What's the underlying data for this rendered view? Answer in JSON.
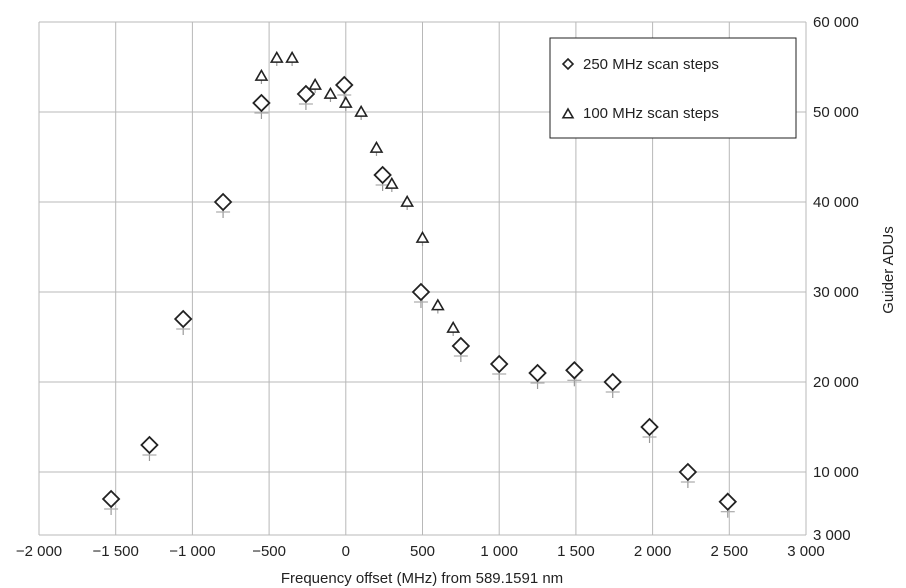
{
  "chart_data": {
    "type": "scatter",
    "xlabel": "Frequency offset (MHz) from 589.1591 nm",
    "ylabel": "Guider ADUs",
    "xlim": [
      -2000,
      3000
    ],
    "ylim": [
      3000,
      60000
    ],
    "x_ticks": [
      -2000,
      -1500,
      -1000,
      -500,
      0,
      500,
      1000,
      1500,
      2000,
      2500,
      3000
    ],
    "x_tick_labels": [
      "−2 000",
      "−1 500",
      "−1 000",
      "−500",
      "0",
      "500",
      "1 000",
      "1 500",
      "2 000",
      "2 500",
      "3 000"
    ],
    "y_ticks": [
      3000,
      10000,
      20000,
      30000,
      40000,
      50000,
      60000
    ],
    "y_tick_labels": [
      "3 000",
      "10 000",
      "20 000",
      "30 000",
      "40 000",
      "50 000",
      "60 000"
    ],
    "y_axis_side": "right",
    "grid": true,
    "legend_position": "top-right",
    "series": [
      {
        "name": "250 MHz scan steps",
        "marker": "diamond",
        "x": [
          -1530,
          -1280,
          -1060,
          -800,
          -550,
          -260,
          -10,
          240,
          490,
          750,
          1000,
          1250,
          1490,
          1740,
          1980,
          2230,
          2490
        ],
        "y": [
          7000,
          13000,
          27000,
          40000,
          51000,
          52000,
          53000,
          43000,
          30000,
          24000,
          22000,
          21000,
          21300,
          20000,
          15000,
          10000,
          6700
        ]
      },
      {
        "name": "100 MHz scan steps",
        "marker": "triangle",
        "x": [
          -550,
          -450,
          -350,
          -200,
          -100,
          0,
          100,
          200,
          300,
          400,
          500,
          600,
          700
        ],
        "y": [
          54000,
          56000,
          56000,
          53000,
          52000,
          51000,
          50000,
          46000,
          42000,
          40000,
          36000,
          28500,
          26000
        ]
      }
    ]
  }
}
